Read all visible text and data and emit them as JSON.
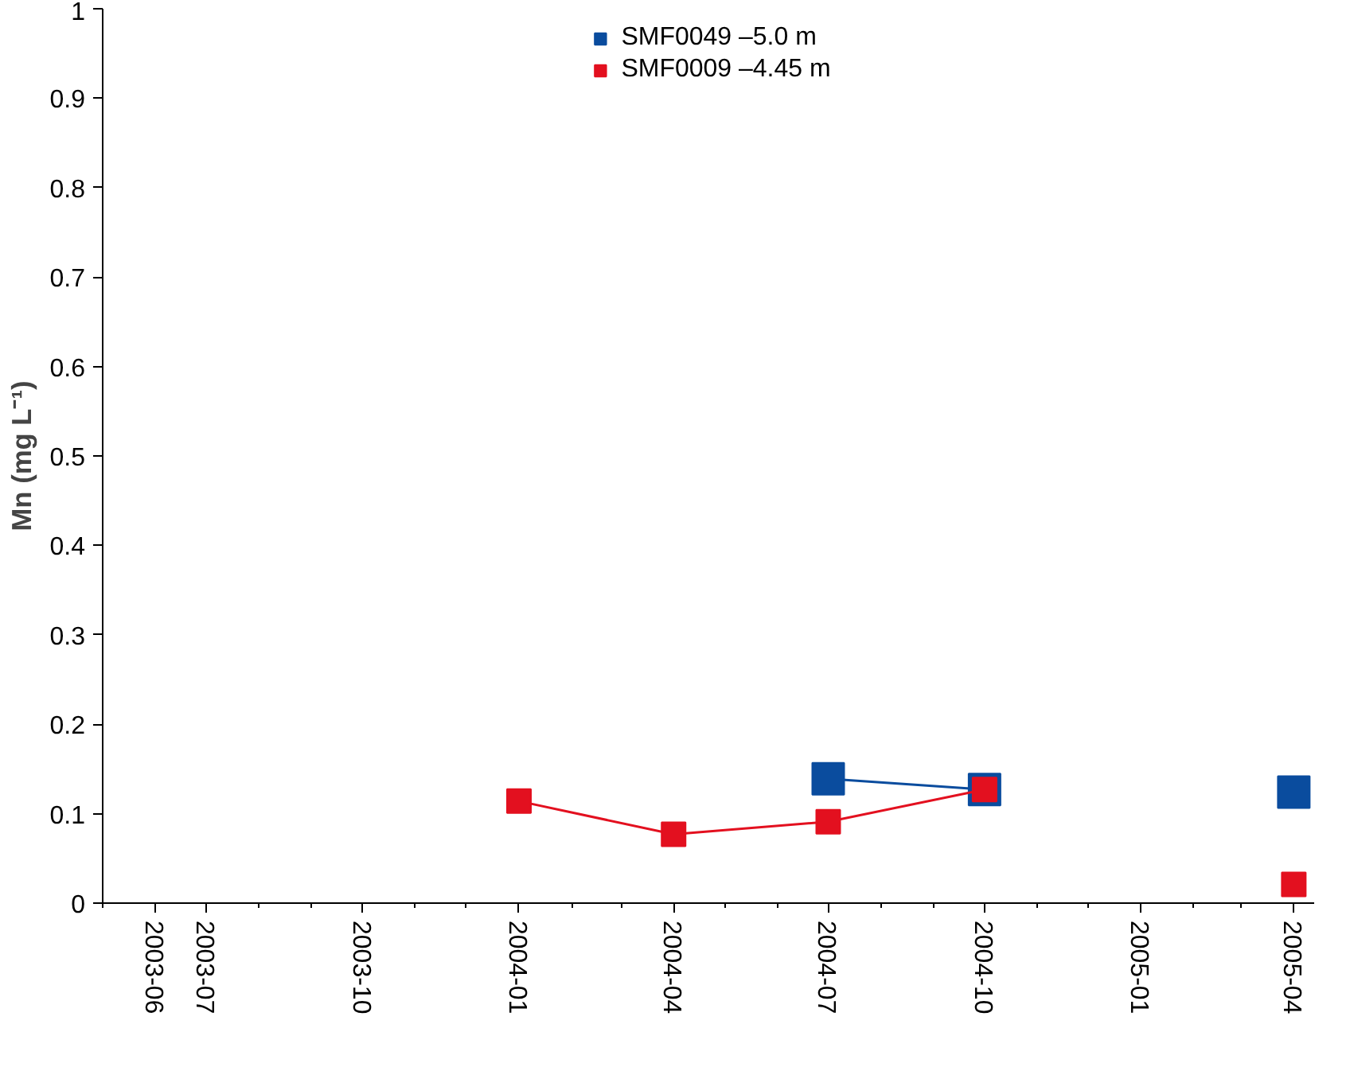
{
  "chart_data": {
    "type": "line",
    "ylabel": "Mn (mg L⁻¹)",
    "marker": "square",
    "grid": false,
    "legend": "top",
    "xlim": [
      "2003-05-01",
      "2005-04-13"
    ],
    "ylim": [
      0,
      1
    ],
    "xticks": [
      "2003-06",
      "2003-07",
      "2003-10",
      "2004-01",
      "2004-04",
      "2004-07",
      "2004-10",
      "2005-01",
      "2005-04"
    ],
    "yticks": [
      0,
      0.1,
      0.2,
      0.3,
      0.4,
      0.5,
      0.6,
      0.7,
      0.8,
      0.9,
      1
    ],
    "series": [
      {
        "name": "SMF0049 –5.0 m",
        "color": "#0a4c9e",
        "x": [
          "2004-07",
          "2004-10",
          "2005-01",
          "2005-04"
        ],
        "values": [
          0.139,
          0.127,
          null,
          0.124
        ]
      },
      {
        "name": "SMF0009 –4.45 m",
        "color": "#e3101f",
        "x": [
          "2004-01",
          "2004-04",
          "2004-07",
          "2004-10",
          "2005-01",
          "2005-04"
        ],
        "values": [
          0.114,
          0.077,
          0.091,
          0.127,
          null,
          0.021
        ]
      }
    ]
  }
}
